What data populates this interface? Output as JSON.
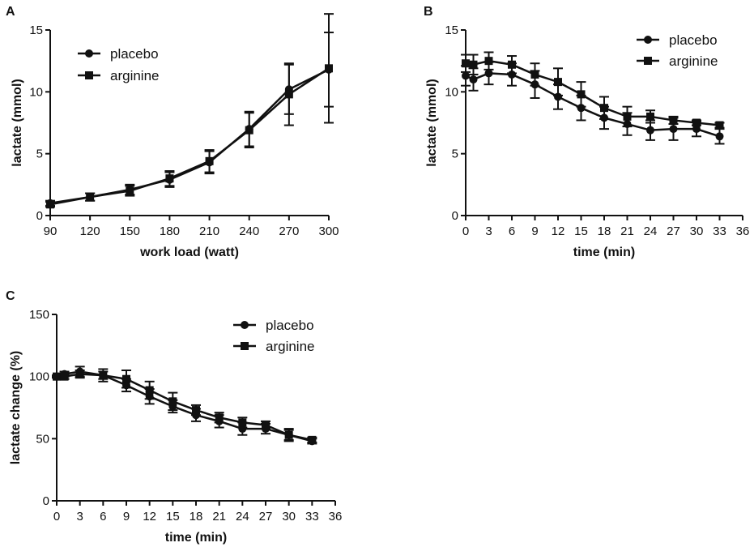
{
  "colors": {
    "ink": "#111111",
    "background": "#ffffff"
  },
  "chart_data": [
    {
      "id": "A",
      "type": "line",
      "panel_label": "A",
      "xlabel": "work load (watt)",
      "ylabel": "lactate (mmol)",
      "xlim": [
        90,
        300
      ],
      "ylim": [
        0,
        15
      ],
      "xticks": [
        90,
        120,
        150,
        180,
        210,
        240,
        270,
        300
      ],
      "yticks": [
        0,
        5,
        10,
        15
      ],
      "legend_position": "top-left",
      "x": [
        90,
        120,
        150,
        180,
        210,
        240,
        270,
        300
      ],
      "series": [
        {
          "name": "placebo",
          "marker": "circle",
          "values": [
            1.0,
            1.5,
            2.1,
            2.9,
            4.3,
            7.0,
            10.2,
            11.8
          ],
          "errors": [
            0.2,
            0.3,
            0.4,
            0.6,
            0.9,
            1.4,
            2.0,
            3.0
          ]
        },
        {
          "name": "arginine",
          "marker": "square",
          "values": [
            0.9,
            1.5,
            2.0,
            3.0,
            4.4,
            6.9,
            9.8,
            11.9
          ],
          "errors": [
            0.2,
            0.3,
            0.4,
            0.6,
            0.9,
            1.4,
            2.5,
            4.4
          ]
        }
      ]
    },
    {
      "id": "B",
      "type": "line",
      "panel_label": "B",
      "xlabel": "time (min)",
      "ylabel": "lactate (mmol)",
      "xlim": [
        0,
        36
      ],
      "ylim": [
        0,
        15
      ],
      "xticks": [
        0,
        3,
        6,
        9,
        12,
        15,
        18,
        21,
        24,
        27,
        30,
        33,
        36
      ],
      "yticks": [
        0,
        5,
        10,
        15
      ],
      "legend_position": "top-right",
      "x": [
        0,
        1,
        3,
        6,
        9,
        12,
        15,
        18,
        21,
        24,
        27,
        30,
        33
      ],
      "series": [
        {
          "name": "placebo",
          "marker": "circle",
          "values": [
            11.3,
            11.0,
            11.5,
            11.4,
            10.6,
            9.6,
            8.7,
            7.9,
            7.4,
            6.9,
            7.0,
            7.0,
            6.4
          ],
          "errors": [
            0.8,
            0.9,
            0.9,
            0.9,
            1.1,
            1.0,
            1.0,
            0.9,
            0.9,
            0.8,
            0.9,
            0.6,
            0.6
          ]
        },
        {
          "name": "arginine",
          "marker": "square",
          "values": [
            12.3,
            12.2,
            12.5,
            12.2,
            11.4,
            10.8,
            9.8,
            8.7,
            8.0,
            8.0,
            7.7,
            7.5,
            7.3
          ],
          "errors": [
            0.7,
            0.8,
            0.7,
            0.7,
            0.9,
            1.1,
            1.0,
            0.9,
            0.8,
            0.5,
            0.3,
            0.2,
            0.2
          ]
        }
      ]
    },
    {
      "id": "C",
      "type": "line",
      "panel_label": "C",
      "xlabel": "time (min)",
      "ylabel": "lactate change (%)",
      "xlim": [
        0,
        36
      ],
      "ylim": [
        0,
        150
      ],
      "xticks": [
        0,
        3,
        6,
        9,
        12,
        15,
        18,
        21,
        24,
        27,
        30,
        33,
        36
      ],
      "yticks": [
        0,
        50,
        100,
        150
      ],
      "legend_position": "top-right",
      "x": [
        0,
        1,
        3,
        6,
        9,
        12,
        15,
        18,
        21,
        24,
        27,
        30,
        33
      ],
      "series": [
        {
          "name": "placebo",
          "marker": "circle",
          "values": [
            100,
            102,
            104,
            101,
            93,
            84,
            76,
            69,
            64,
            58,
            58,
            53,
            48
          ],
          "errors": [
            1,
            2,
            4,
            5,
            5,
            6,
            5,
            5,
            5,
            5,
            4,
            4,
            2
          ]
        },
        {
          "name": "arginine",
          "marker": "square",
          "values": [
            100,
            100,
            102,
            101,
            98,
            89,
            80,
            73,
            67,
            63,
            61,
            53,
            49
          ],
          "errors": [
            1,
            2,
            3,
            3,
            7,
            7,
            7,
            4,
            4,
            4,
            3,
            5,
            2
          ]
        }
      ]
    }
  ]
}
